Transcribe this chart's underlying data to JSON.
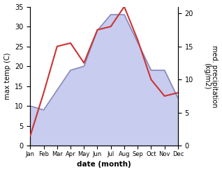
{
  "months": [
    "Jan",
    "Feb",
    "Mar",
    "Apr",
    "May",
    "Jun",
    "Jul",
    "Aug",
    "Sep",
    "Oct",
    "Nov",
    "Dec"
  ],
  "temp": [
    10,
    9,
    14,
    19,
    20,
    29,
    33,
    33,
    26,
    19,
    19,
    12
  ],
  "precip": [
    1.5,
    8,
    15,
    15.5,
    12.5,
    17.5,
    18,
    21,
    16,
    10,
    7.5,
    8
  ],
  "temp_color": "#8888bb",
  "temp_fill": "#c8ccee",
  "precip_color": "#cc3333",
  "temp_ylim": [
    0,
    35
  ],
  "precip_ylim": [
    0,
    21
  ],
  "precip_yticks": [
    0,
    5,
    10,
    15,
    20
  ],
  "temp_yticks": [
    0,
    5,
    10,
    15,
    20,
    25,
    30,
    35
  ],
  "ylabel_left": "max temp (C)",
  "ylabel_right": "med. precipitation\n(kg/m2)",
  "xlabel": "date (month)",
  "bg_color": "#ffffff"
}
